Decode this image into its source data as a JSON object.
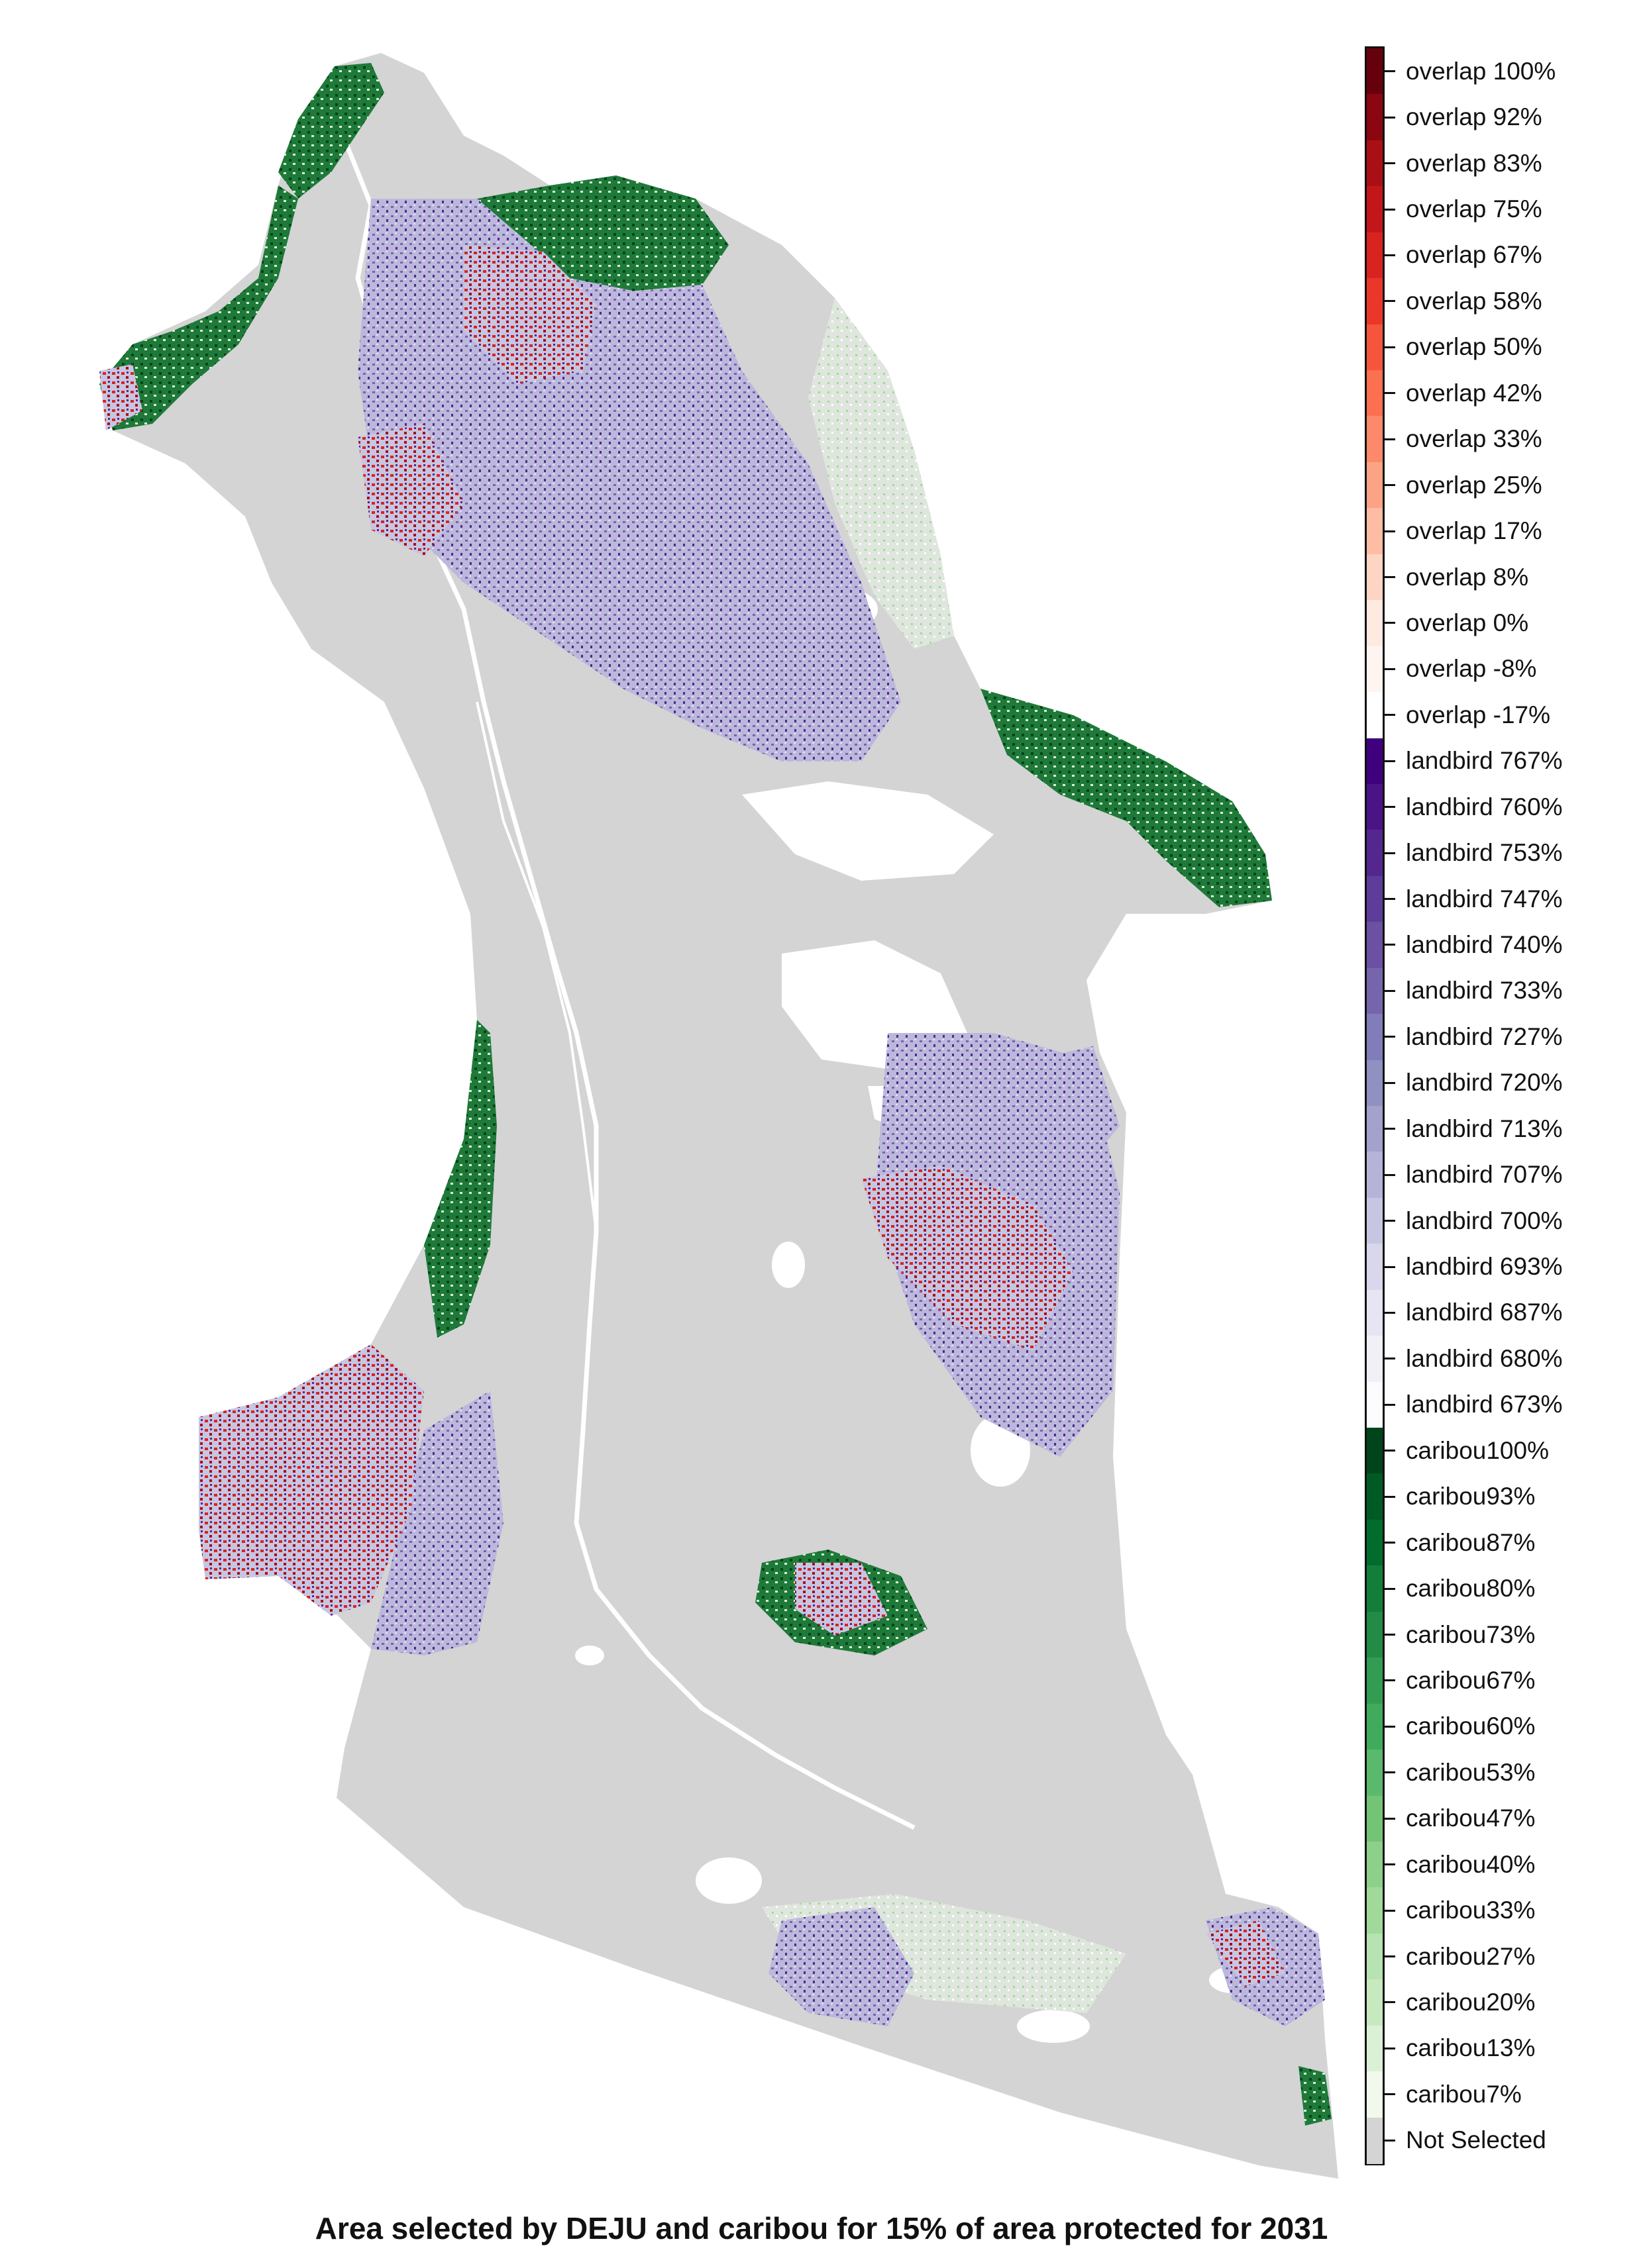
{
  "map": {
    "caption": "Area selected by DEJU and caribou for 15% of area protected for 2031",
    "base_color": "#d4d4d4",
    "water_color": "#ffffff",
    "palette": {
      "overlap_high": "#67000d",
      "overlap_mid": "#e83a30",
      "overlap_low": "#fcbba1",
      "landbird_high": "#3f007d",
      "landbird_mid": "#7a70b5",
      "landbird_low": "#cbc9e2",
      "caribou_high": "#00441b",
      "caribou_mid": "#2f9a4c",
      "caribou_low": "#b7e2b1",
      "not_selected": "#d4d4d4"
    }
  },
  "legend": {
    "items": [
      {
        "label": "overlap 100%",
        "color": "#67000d"
      },
      {
        "label": "overlap 92%",
        "color": "#8b0610"
      },
      {
        "label": "overlap 83%",
        "color": "#a91016"
      },
      {
        "label": "overlap 75%",
        "color": "#c3161b"
      },
      {
        "label": "overlap 67%",
        "color": "#d9231f"
      },
      {
        "label": "overlap 58%",
        "color": "#eb362a"
      },
      {
        "label": "overlap 50%",
        "color": "#f5553d"
      },
      {
        "label": "overlap 42%",
        "color": "#fb7051"
      },
      {
        "label": "overlap 33%",
        "color": "#fc8a6a"
      },
      {
        "label": "overlap 25%",
        "color": "#fca385"
      },
      {
        "label": "overlap 17%",
        "color": "#fdbda4"
      },
      {
        "label": "overlap 8%",
        "color": "#fed5c4"
      },
      {
        "label": "overlap 0%",
        "color": "#feeae1"
      },
      {
        "label": "overlap -8%",
        "color": "#fff5f0"
      },
      {
        "label": "overlap -17%",
        "color": "#ffffff"
      },
      {
        "label": "landbird 767%",
        "color": "#3f007d"
      },
      {
        "label": "landbird 760%",
        "color": "#4a1486"
      },
      {
        "label": "landbird 753%",
        "color": "#54278f"
      },
      {
        "label": "landbird 747%",
        "color": "#5e3c99"
      },
      {
        "label": "landbird 740%",
        "color": "#6a51a3"
      },
      {
        "label": "landbird 733%",
        "color": "#7665ad"
      },
      {
        "label": "landbird 727%",
        "color": "#807dba"
      },
      {
        "label": "landbird 720%",
        "color": "#9190c3"
      },
      {
        "label": "landbird 713%",
        "color": "#a3a2cd"
      },
      {
        "label": "landbird 707%",
        "color": "#b5b4d8"
      },
      {
        "label": "landbird 700%",
        "color": "#c7c6e2"
      },
      {
        "label": "landbird 693%",
        "color": "#d8d7eb"
      },
      {
        "label": "landbird 687%",
        "color": "#e6e5f1"
      },
      {
        "label": "landbird 680%",
        "color": "#f2f0f7"
      },
      {
        "label": "landbird 673%",
        "color": "#fcfbfd"
      },
      {
        "label": "caribou100%",
        "color": "#00441b"
      },
      {
        "label": "caribou93%",
        "color": "#005a24"
      },
      {
        "label": "caribou87%",
        "color": "#006d2c"
      },
      {
        "label": "caribou80%",
        "color": "#137e39"
      },
      {
        "label": "caribou73%",
        "color": "#238b45"
      },
      {
        "label": "caribou67%",
        "color": "#339c53"
      },
      {
        "label": "caribou60%",
        "color": "#41ab5d"
      },
      {
        "label": "caribou53%",
        "color": "#5bb96e"
      },
      {
        "label": "caribou47%",
        "color": "#74c476"
      },
      {
        "label": "caribou40%",
        "color": "#8dd08a"
      },
      {
        "label": "caribou33%",
        "color": "#a1d99b"
      },
      {
        "label": "caribou27%",
        "color": "#b7e2b1"
      },
      {
        "label": "caribou20%",
        "color": "#c7e9c0"
      },
      {
        "label": "caribou13%",
        "color": "#dbf1d5"
      },
      {
        "label": "caribou7%",
        "color": "#f0f9ec"
      },
      {
        "label": "Not Selected",
        "color": "#d4d4d4"
      }
    ]
  }
}
